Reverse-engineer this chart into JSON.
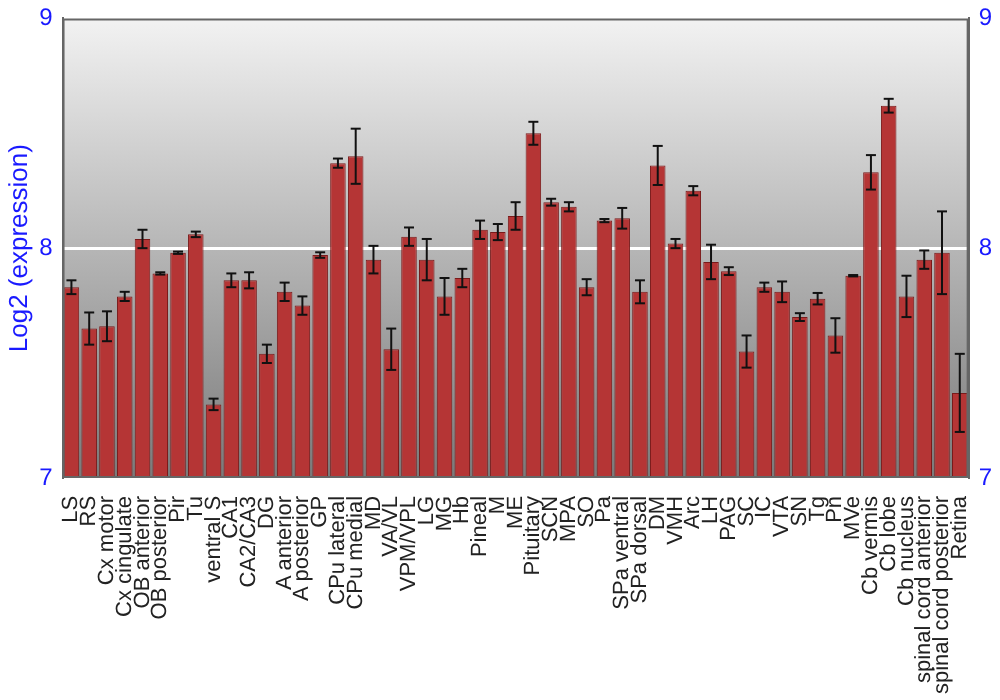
{
  "chart_data": {
    "type": "bar",
    "ylabel": "Log2 (expression)",
    "categories": [
      "LS",
      "RS",
      "Cx motor",
      "Cx cingulate",
      "OB anterior",
      "OB posterior",
      "Pir",
      "Tu",
      "ventral S",
      "CA1",
      "CA2/CA3",
      "DG",
      "A anterior",
      "A posterior",
      "GP",
      "CPu lateral",
      "CPu medial",
      "MD",
      "VA/VL",
      "VPM/VPL",
      "LG",
      "MG",
      "Hb",
      "Pineal",
      "M",
      "ME",
      "Pituitary",
      "SCN",
      "MPA",
      "SO",
      "Pa",
      "SPa ventral",
      "SPa dorsal",
      "DM",
      "VMH",
      "Arc",
      "LH",
      "PAG",
      "SC",
      "IC",
      "VTA",
      "SN",
      "Tg",
      "Pn",
      "MVe",
      "Cb vermis",
      "Cb lobe",
      "Cb nucleus",
      "spinal cord anterior",
      "spinal cord posterior",
      "Retina"
    ],
    "values": [
      7.83,
      7.65,
      7.66,
      7.79,
      8.04,
      7.89,
      7.98,
      8.06,
      7.32,
      7.86,
      7.86,
      7.54,
      7.81,
      7.75,
      7.97,
      8.37,
      8.4,
      7.95,
      7.56,
      8.05,
      7.95,
      7.79,
      7.87,
      8.08,
      8.07,
      8.14,
      8.5,
      8.2,
      8.18,
      7.83,
      8.12,
      8.13,
      7.81,
      8.36,
      8.02,
      8.25,
      7.94,
      7.9,
      7.55,
      7.83,
      7.81,
      7.7,
      7.78,
      7.62,
      7.88,
      8.33,
      8.62,
      7.79,
      7.95,
      7.98,
      7.37
    ],
    "errors": [
      0.03,
      0.07,
      0.065,
      0.02,
      0.04,
      0.005,
      0.005,
      0.012,
      0.025,
      0.03,
      0.035,
      0.04,
      0.04,
      0.04,
      0.012,
      0.02,
      0.12,
      0.06,
      0.09,
      0.04,
      0.09,
      0.08,
      0.04,
      0.04,
      0.035,
      0.06,
      0.05,
      0.015,
      0.02,
      0.035,
      0.007,
      0.045,
      0.05,
      0.085,
      0.02,
      0.02,
      0.075,
      0.017,
      0.07,
      0.02,
      0.045,
      0.017,
      0.025,
      0.075,
      0.003,
      0.075,
      0.03,
      0.09,
      0.04,
      0.18,
      0.17
    ],
    "color": "#b53535",
    "ylim": [
      7,
      9
    ],
    "yticks": [
      7,
      8,
      9
    ],
    "y2lim": [
      7,
      9
    ],
    "y2ticks": [
      7,
      8,
      9
    ],
    "grid": "y",
    "legend": false
  }
}
